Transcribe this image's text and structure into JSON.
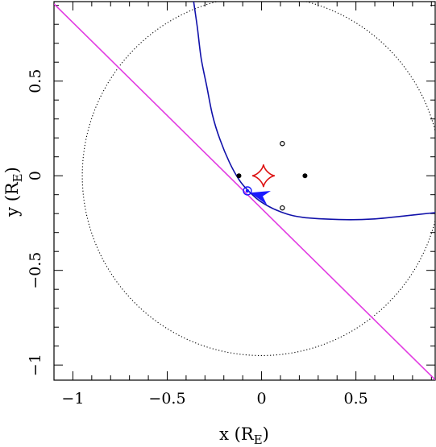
{
  "chart_data": {
    "type": "scatter",
    "xlabel": "x (R",
    "xlabel_sub": "E",
    "xlabel_close": ")",
    "ylabel": "y (R",
    "ylabel_sub": "E",
    "ylabel_close": ")",
    "xlim": [
      -1.1,
      0.92
    ],
    "ylim": [
      -1.08,
      0.92
    ],
    "x_ticks": [
      {
        "value": -1,
        "label": "−1"
      },
      {
        "value": -0.5,
        "label": "−0.5"
      },
      {
        "value": 0,
        "label": "0"
      },
      {
        "value": 0.5,
        "label": "0.5"
      }
    ],
    "y_ticks": [
      {
        "value": -1,
        "label": "−1"
      },
      {
        "value": -0.5,
        "label": "−0.5"
      },
      {
        "value": 0,
        "label": "0"
      },
      {
        "value": 0.5,
        "label": "0.5"
      }
    ],
    "einstein_ring": {
      "cx": 0,
      "cy": 0,
      "r": 0.95,
      "color": "#000000"
    },
    "source_trajectory": {
      "color": "#e23ce2",
      "points": [
        [
          -1.1,
          0.908
        ],
        [
          0.92,
          -1.078
        ]
      ]
    },
    "source_position": {
      "x": -0.075,
      "y": -0.08,
      "color": "#1a1aff"
    },
    "arrow": {
      "tip": [
        -0.06,
        -0.09
      ],
      "from": [
        0.05,
        -0.12
      ],
      "color": "#1a1aff"
    },
    "caustic": {
      "cx": 0.01,
      "cy": 0.0,
      "size": 0.06,
      "color": "#dd1111"
    },
    "lens_masses": [
      {
        "x": -0.12,
        "y": 0.0
      },
      {
        "x": 0.23,
        "y": 0.0
      }
    ],
    "lens_images_open": [
      {
        "x": 0.11,
        "y": 0.17
      },
      {
        "x": 0.11,
        "y": -0.17
      }
    ],
    "critical_curve": {
      "color": "#1111aa",
      "points": [
        [
          -0.36,
          0.92
        ],
        [
          -0.34,
          0.78
        ],
        [
          -0.32,
          0.62
        ],
        [
          -0.29,
          0.47
        ],
        [
          -0.26,
          0.32
        ],
        [
          -0.22,
          0.19
        ],
        [
          -0.17,
          0.07
        ],
        [
          -0.12,
          -0.02
        ],
        [
          -0.07,
          -0.08
        ],
        [
          0.0,
          -0.14
        ],
        [
          0.1,
          -0.19
        ],
        [
          0.22,
          -0.22
        ],
        [
          0.44,
          -0.232
        ],
        [
          0.6,
          -0.228
        ],
        [
          0.75,
          -0.213
        ],
        [
          0.92,
          -0.195
        ]
      ]
    }
  }
}
